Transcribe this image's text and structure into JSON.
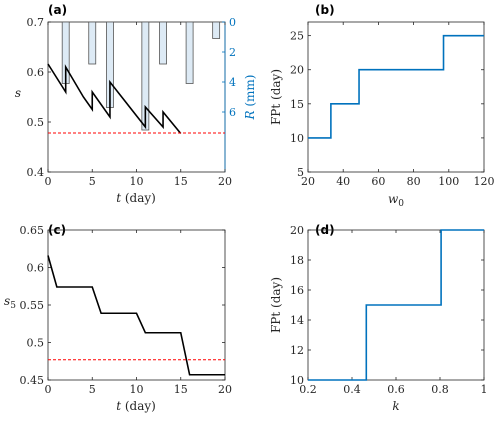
{
  "chart_data": [
    {
      "panel": "(a)",
      "type": "line",
      "xlabel": "t (day)",
      "ylabel_left": "s",
      "ylabel_right": "R (mm)",
      "xlim": [
        0,
        20
      ],
      "ylim_left": [
        0.4,
        0.7
      ],
      "ylim_right": [
        0,
        10
      ],
      "right_axis_reversed": true,
      "xticks": [
        "0",
        "5",
        "10",
        "15",
        "20"
      ],
      "yticks_left": [
        "0.4",
        "0.5",
        "0.6",
        "0.7"
      ],
      "yticks_right": [
        "0",
        "2",
        "4",
        "6"
      ],
      "series": [
        {
          "kind": "line",
          "color": "#000000",
          "x": [
            0,
            2,
            2,
            4,
            4,
            5,
            5,
            7,
            7,
            11,
            11,
            13,
            13,
            15
          ],
          "y": [
            0.616,
            0.56,
            0.61,
            0.55,
            0.55,
            0.525,
            0.56,
            0.51,
            0.58,
            0.49,
            0.53,
            0.49,
            0.52,
            0.477
          ]
        },
        {
          "kind": "hline",
          "color": "#ff0000",
          "style": "dashed",
          "y": 0.478
        },
        {
          "kind": "bar",
          "axis": "right",
          "color": "#ddeaf5",
          "edge": "#555555",
          "x": [
            2,
            5,
            7,
            11,
            13,
            16,
            19
          ],
          "values": [
            4.1,
            2.8,
            5.7,
            7.2,
            2.8,
            4.1,
            1.1
          ]
        }
      ]
    },
    {
      "panel": "(b)",
      "type": "line",
      "xlabel": "w0",
      "ylabel": "FPt (day)",
      "xlim": [
        20,
        120
      ],
      "ylim": [
        5,
        27
      ],
      "xticks": [
        "20",
        "40",
        "60",
        "80",
        "100",
        "120"
      ],
      "yticks": [
        "5",
        "10",
        "15",
        "20",
        "25"
      ],
      "series": [
        {
          "color": "#0072bd",
          "x": [
            20,
            33,
            33,
            49,
            49,
            97,
            97,
            120
          ],
          "y": [
            10,
            10,
            15,
            15,
            20,
            20,
            25,
            25
          ]
        }
      ]
    },
    {
      "panel": "(c)",
      "type": "line",
      "xlabel": "t (day)",
      "ylabel": "s5",
      "xlim": [
        0,
        20
      ],
      "ylim": [
        0.45,
        0.65
      ],
      "xticks": [
        "0",
        "5",
        "10",
        "15",
        "20"
      ],
      "yticks": [
        "0.45",
        "0.5",
        "0.55",
        "0.6",
        "0.65"
      ],
      "series": [
        {
          "color": "#000000",
          "x": [
            0,
            1,
            5,
            6,
            10,
            11,
            15,
            16,
            20
          ],
          "y": [
            0.616,
            0.574,
            0.574,
            0.539,
            0.539,
            0.513,
            0.513,
            0.457,
            0.457
          ]
        },
        {
          "kind": "hline",
          "color": "#ff0000",
          "style": "dashed",
          "y": 0.477
        }
      ]
    },
    {
      "panel": "(d)",
      "type": "line",
      "xlabel": "k",
      "ylabel": "FPt (day)",
      "xlim": [
        0.2,
        1
      ],
      "ylim": [
        10,
        20
      ],
      "xticks": [
        "0.2",
        "0.4",
        "0.6",
        "0.8",
        "1"
      ],
      "yticks": [
        "10",
        "12",
        "14",
        "16",
        "18",
        "20"
      ],
      "series": [
        {
          "color": "#0072bd",
          "x": [
            0.2,
            0.465,
            0.465,
            0.805,
            0.805,
            1
          ],
          "y": [
            10,
            10,
            15,
            15,
            20,
            20
          ]
        }
      ]
    }
  ]
}
